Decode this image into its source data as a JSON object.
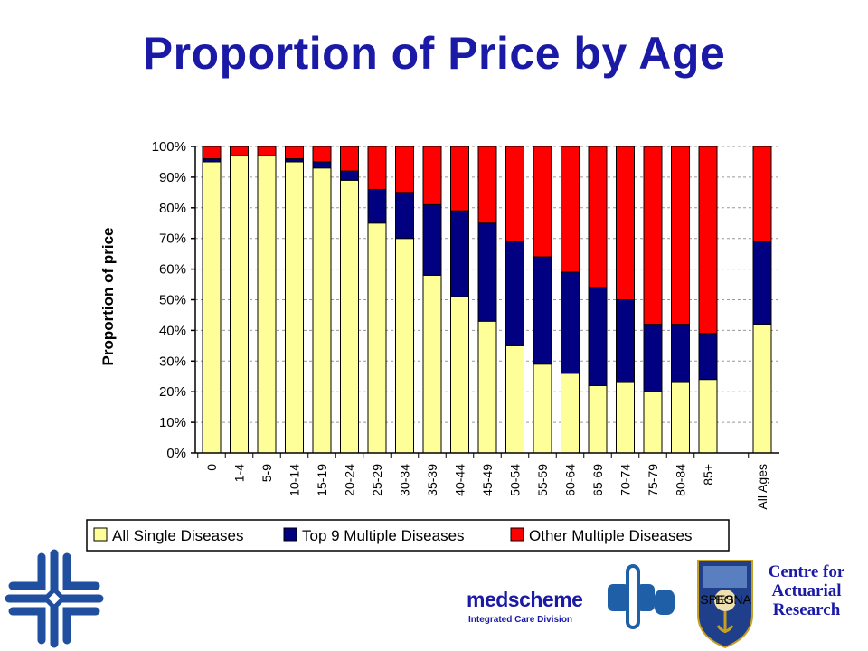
{
  "title": "Proportion of Price by Age",
  "chart_data": {
    "type": "bar",
    "stacked": true,
    "title": "Proportion of Price by Age",
    "ylabel": "Proportion of price",
    "xlabel": "",
    "ylim": [
      0,
      100
    ],
    "yticks": [
      "0%",
      "10%",
      "20%",
      "30%",
      "40%",
      "50%",
      "60%",
      "70%",
      "80%",
      "90%",
      "100%"
    ],
    "grid": "horizontal dashed",
    "legend_position": "bottom",
    "categories": [
      "0",
      "1-4",
      "5-9",
      "10-14",
      "15-19",
      "20-24",
      "25-29",
      "30-34",
      "35-39",
      "40-44",
      "45-49",
      "50-54",
      "55-59",
      "60-64",
      "65-69",
      "70-74",
      "75-79",
      "80-84",
      "85+",
      "All Ages"
    ],
    "series": [
      {
        "name": "All Single Diseases",
        "color": "#ffff99",
        "values": [
          95,
          97,
          97,
          95,
          93,
          89,
          75,
          70,
          58,
          51,
          43,
          35,
          29,
          26,
          22,
          23,
          20,
          23,
          24,
          42
        ]
      },
      {
        "name": "Top 9 Multiple Diseases",
        "color": "#000080",
        "values": [
          1,
          0,
          0,
          1,
          2,
          3,
          11,
          15,
          23,
          28,
          32,
          34,
          35,
          33,
          32,
          27,
          22,
          19,
          15,
          27
        ]
      },
      {
        "name": "Other Multiple Diseases",
        "color": "#ff0000",
        "values": [
          4,
          3,
          3,
          4,
          5,
          8,
          14,
          15,
          19,
          21,
          25,
          31,
          36,
          41,
          46,
          50,
          58,
          58,
          61,
          31
        ]
      }
    ]
  },
  "logos": {
    "car_text": [
      "Centre for",
      "Actuarial",
      "Research"
    ],
    "medscheme_name": "medscheme",
    "medscheme_sub": "Integrated Care Division",
    "shield_text": [
      "SPES",
      "BONA"
    ]
  },
  "colors": {
    "title": "#1a1aa6",
    "logo_blue": "#1a1aa6"
  }
}
